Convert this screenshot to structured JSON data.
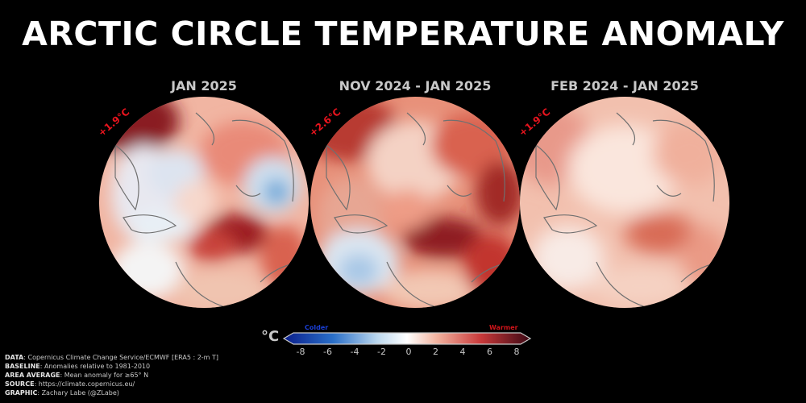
{
  "title": "ARCTIC CIRCLE TEMPERATURE ANOMALY",
  "panels": [
    {
      "label": "JAN 2025",
      "area_average": "+1.9°C"
    },
    {
      "label": "NOV 2024 - JAN 2025",
      "area_average": "+2.6°C"
    },
    {
      "label": "FEB 2024 - JAN 2025",
      "area_average": "+1.9°C"
    }
  ],
  "colorbar": {
    "unit": "°C",
    "colder_label": "Colder",
    "warmer_label": "Warmer",
    "ticks": [
      "-8",
      "-6",
      "-4",
      "-2",
      "0",
      "2",
      "4",
      "6",
      "8"
    ],
    "range": [
      -8,
      8
    ],
    "colors": {
      "cold_end": "#0a1e8c",
      "neutral": "#ffffff",
      "warm_end": "#3c0814"
    }
  },
  "credits": [
    {
      "key": "DATA",
      "text": ": Copernicus Climate Change Service/ECMWF [ERA5 : 2-m T]"
    },
    {
      "key": "BASELINE",
      "text": ": Anomalies relative to 1981-2010"
    },
    {
      "key": "AREA AVERAGE",
      "text": ": Mean anomaly for ≥65° N"
    },
    {
      "key": "SOURCE",
      "text": ": https://climate.copernicus.eu/"
    },
    {
      "key": "GRAPHIC",
      "text": ": Zachary Labe (@ZLabe)"
    }
  ]
}
